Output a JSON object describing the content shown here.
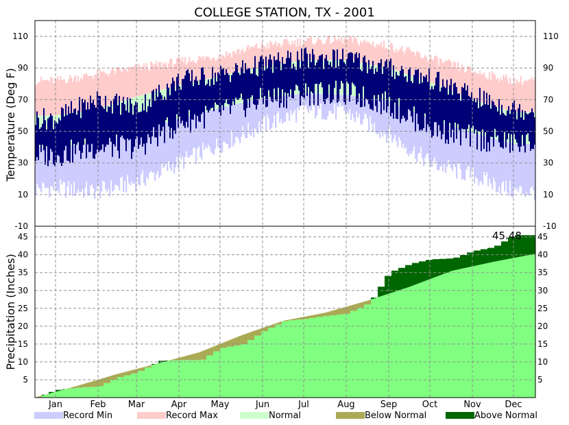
{
  "title": "COLLEGE STATION, TX - 2001",
  "colors": {
    "record_min": "#ccccff",
    "record_max": "#ffcccc",
    "normal": "#ccffcc",
    "actual": "#000077",
    "below_normal": "#aaaa55",
    "above_normal": "#006600",
    "normal_precip": "#80ff80"
  },
  "legend": [
    {
      "label": "Record Min",
      "color": "#ccccff"
    },
    {
      "label": "Record Max",
      "color": "#ffcccc"
    },
    {
      "label": "Normal",
      "color": "#ccffcc"
    },
    {
      "label": "Below Normal",
      "color": "#aaaa55"
    },
    {
      "label": "Above Normal",
      "color": "#006600"
    }
  ],
  "chart_data": [
    {
      "type": "bar",
      "title": "COLLEGE STATION, TX - 2001",
      "ylabel": "Temperature (Deg F)",
      "ylim": [
        -10,
        120
      ],
      "yticks": [
        -10,
        10,
        30,
        50,
        70,
        90,
        110
      ],
      "months": [
        "Jan",
        "Feb",
        "Mar",
        "Apr",
        "May",
        "Jun",
        "Jul",
        "Aug",
        "Sep",
        "Oct",
        "Nov",
        "Dec"
      ],
      "grid": true,
      "series": [
        {
          "name": "Record Min",
          "monthly_values": [
            14,
            12,
            18,
            30,
            42,
            54,
            63,
            62,
            48,
            30,
            22,
            12
          ]
        },
        {
          "name": "Record Max",
          "monthly_values": [
            82,
            86,
            90,
            94,
            98,
            104,
            107,
            108,
            104,
            96,
            88,
            82
          ]
        },
        {
          "name": "Normal",
          "monthly_low": [
            40,
            43,
            50,
            58,
            65,
            71,
            74,
            73,
            69,
            58,
            49,
            42
          ],
          "monthly_high": [
            60,
            64,
            72,
            79,
            85,
            91,
            95,
            95,
            90,
            81,
            70,
            62
          ]
        },
        {
          "name": "Actual",
          "monthly_low": [
            35,
            40,
            40,
            55,
            62,
            70,
            74,
            74,
            67,
            52,
            46,
            42
          ],
          "monthly_high": [
            58,
            70,
            65,
            82,
            86,
            92,
            96,
            96,
            90,
            83,
            72,
            64
          ]
        }
      ]
    },
    {
      "type": "area",
      "ylabel": "Precipitation (Inches)",
      "ylim": [
        0,
        48
      ],
      "yticks": [
        5,
        10,
        15,
        20,
        25,
        30,
        35,
        40,
        45
      ],
      "months": [
        "Jan",
        "Feb",
        "Mar",
        "Apr",
        "May",
        "Jun",
        "Jul",
        "Aug",
        "Sep",
        "Oct",
        "Nov",
        "Dec"
      ],
      "annotation": "45.48",
      "grid": true,
      "series": [
        {
          "name": "Normal",
          "x": [
            "Jan 1",
            "Feb 1",
            "Mar 1",
            "Apr 1",
            "May 1",
            "Jun 1",
            "Jul 1",
            "Aug 1",
            "Sep 1",
            "Oct 1",
            "Nov 1",
            "Dec 1",
            "Dec 31"
          ],
          "values": [
            0,
            3.3,
            6.5,
            9.6,
            12.7,
            17.5,
            21.5,
            23.8,
            27.2,
            31.0,
            35.5,
            38.0,
            40.2
          ]
        },
        {
          "name": "Observed",
          "x": [
            "Jan 1",
            "Jan 15",
            "Feb 1",
            "Feb 15",
            "Mar 1",
            "Mar 15",
            "Apr 1",
            "Apr 15",
            "May 1",
            "May 15",
            "Jun 1",
            "Jun 15",
            "Jul 1",
            "Jul 15",
            "Aug 1",
            "Aug 15",
            "Sep 1",
            "Sep 15",
            "Oct 1",
            "Oct 15",
            "Nov 1",
            "Nov 15",
            "Dec 1",
            "Dec 15",
            "Dec 31"
          ],
          "values": [
            0,
            2.1,
            2.8,
            3.1,
            5.6,
            7.0,
            10.3,
            10.5,
            10.5,
            13.8,
            15.0,
            18.5,
            21.5,
            22.0,
            22.9,
            23.5,
            26.5,
            35.0,
            37.5,
            38.7,
            39.0,
            41.0,
            42.2,
            45.48,
            45.48
          ]
        }
      ]
    }
  ]
}
